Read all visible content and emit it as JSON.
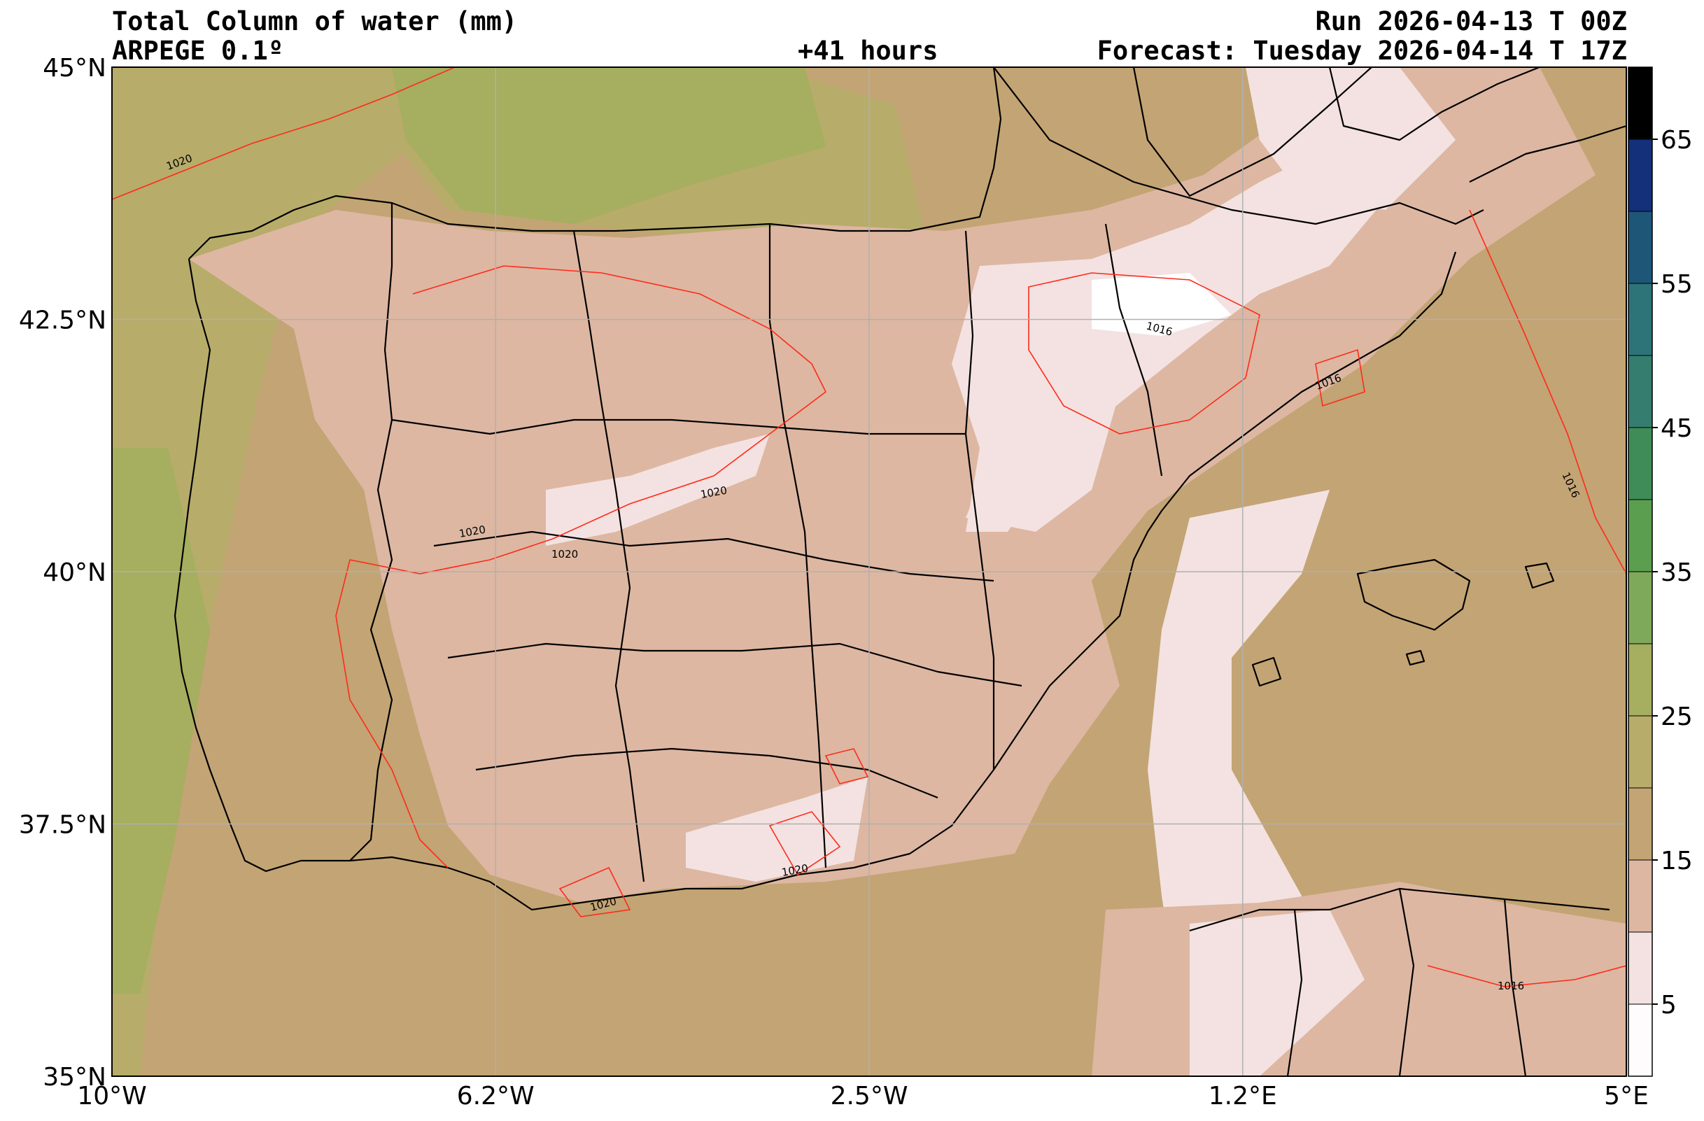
{
  "header": {
    "title": "Total Column of water (mm)",
    "model": "ARPEGE 0.1º",
    "lead_time": "+41 hours",
    "run": "Run 2026-04-13 T 00Z",
    "forecast": "Forecast: Tuesday 2026-04-14 T 17Z"
  },
  "map": {
    "extent": {
      "lon": [
        -10,
        5
      ],
      "lat": [
        35,
        45
      ]
    },
    "lat_ticks": [
      {
        "value": 45,
        "label": "45°N"
      },
      {
        "value": 42.5,
        "label": "42.5°N"
      },
      {
        "value": 40,
        "label": "40°N"
      },
      {
        "value": 37.5,
        "label": "37.5°N"
      },
      {
        "value": 35,
        "label": "35°N"
      }
    ],
    "lon_ticks": [
      {
        "value": -10,
        "label": "10°W"
      },
      {
        "value": -6.2,
        "label": "6.2°W"
      },
      {
        "value": -2.5,
        "label": "2.5°W"
      },
      {
        "value": 1.2,
        "label": "1.2°E"
      },
      {
        "value": 5,
        "label": "5°E"
      }
    ],
    "gridlines": true,
    "colors": {
      "sea_low": "#c3a474",
      "sea_mid": "#b7ac6a",
      "sea_high": "#a6ae5f",
      "land_low": "#ddb7a2",
      "land_dry": "#f3e2e1",
      "land_driest": "#ffffff",
      "isobar": "#ff2a1a",
      "border": "#000000",
      "grid": "#b0b0b0"
    },
    "isobar_labels": [
      "1020",
      "1020",
      "1020",
      "1020",
      "1020",
      "1020",
      "1016",
      "1016",
      "1016",
      "1016"
    ]
  },
  "colorbar": {
    "ticks": [
      {
        "value": 5,
        "label": "5"
      },
      {
        "value": 15,
        "label": "15"
      },
      {
        "value": 25,
        "label": "25"
      },
      {
        "value": 35,
        "label": "35"
      },
      {
        "value": 45,
        "label": "45"
      },
      {
        "value": 55,
        "label": "55"
      },
      {
        "value": 65,
        "label": "65"
      }
    ],
    "range": [
      0,
      70
    ],
    "bins": [
      {
        "from": 0,
        "to": 5,
        "color": "#fefcfc"
      },
      {
        "from": 5,
        "to": 10,
        "color": "#f3e2e1"
      },
      {
        "from": 10,
        "to": 15,
        "color": "#ddb7a2"
      },
      {
        "from": 15,
        "to": 20,
        "color": "#c3a474"
      },
      {
        "from": 20,
        "to": 25,
        "color": "#b7ac6a"
      },
      {
        "from": 25,
        "to": 30,
        "color": "#a6ae5f"
      },
      {
        "from": 30,
        "to": 35,
        "color": "#7ea95a"
      },
      {
        "from": 35,
        "to": 40,
        "color": "#5b9e50"
      },
      {
        "from": 40,
        "to": 45,
        "color": "#3f8c58"
      },
      {
        "from": 45,
        "to": 50,
        "color": "#357d6e"
      },
      {
        "from": 50,
        "to": 55,
        "color": "#2d7479"
      },
      {
        "from": 55,
        "to": 60,
        "color": "#1e5678"
      },
      {
        "from": 60,
        "to": 65,
        "color": "#14307a"
      },
      {
        "from": 65,
        "to": 70,
        "color": "#000000"
      }
    ]
  }
}
